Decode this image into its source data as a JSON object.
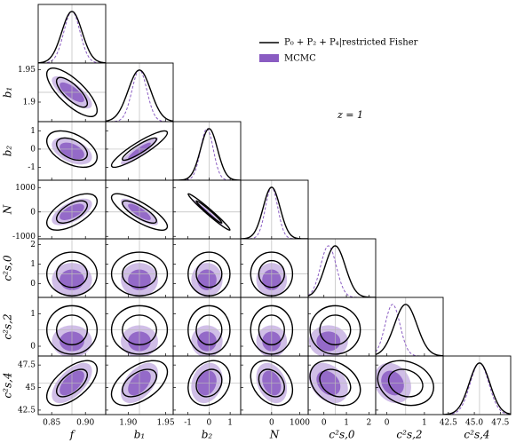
{
  "chart_data": {
    "type": "corner",
    "legend": [
      "P₀ + P₂ + P₄|restricted Fisher",
      "MCMC"
    ],
    "annotation": "z = 1",
    "fisher_color": "#000000",
    "mcmc_color": "#8a5cc2",
    "parameters": [
      {
        "label": "f",
        "fiducial": 0.88,
        "lim": [
          0.83,
          0.93
        ],
        "xticks": [
          0.85,
          {
            "value": 0.9,
            "label": "0.90"
          }
        ],
        "yticks": [],
        "fisher_sigma": 0.015,
        "mcmc_mean": 0.88,
        "mcmc_sigma": 0.012
      },
      {
        "label": "b₁",
        "fiducial": 1.915,
        "lim": [
          1.87,
          1.96
        ],
        "xticks": [
          {
            "value": 1.9,
            "label": "1.90"
          },
          1.95
        ],
        "yticks": [
          1.9,
          1.95
        ],
        "fisher_sigma": 0.015,
        "mcmc_mean": 1.915,
        "mcmc_sigma": 0.01
      },
      {
        "label": "b₂",
        "fiducial": 0,
        "lim": [
          -1.7,
          1.5
        ],
        "xticks": [
          -1,
          0,
          1
        ],
        "yticks": [
          -1,
          0,
          1
        ],
        "fisher_sigma": 0.4,
        "mcmc_mean": -0.1,
        "mcmc_sigma": 0.3
      },
      {
        "label": "N",
        "fiducial": 0,
        "lim": [
          -1100,
          1300
        ],
        "xticks": [
          0,
          1000
        ],
        "yticks": [
          -1000,
          0,
          1000
        ],
        "fisher_sigma": 300,
        "mcmc_mean": 0,
        "mcmc_sigma": 220
      },
      {
        "label": "c²s,0",
        "fiducial": 0.5,
        "lim": [
          -0.7,
          2.3
        ],
        "xticks": [
          0,
          1,
          2
        ],
        "yticks": [
          0,
          1,
          2
        ],
        "fisher_sigma": 0.45,
        "mcmc_mean": 0.2,
        "mcmc_sigma": 0.35
      },
      {
        "label": "c²s,2",
        "fiducial": 0.5,
        "lim": [
          -0.3,
          1.5
        ],
        "xticks": [
          0,
          1
        ],
        "yticks": [
          0,
          1
        ],
        "fisher_sigma": 0.3,
        "mcmc_mean": 0.15,
        "mcmc_sigma": 0.2
      },
      {
        "label": "c²s,4",
        "fiducial": 45.5,
        "lim": [
          42,
          48.5
        ],
        "xticks": [
          42.5,
          {
            "value": 45,
            "label": "45.0"
          },
          47.5
        ],
        "yticks": [
          42.5,
          45,
          47.5
        ],
        "fisher_sigma": 1.0,
        "mcmc_mean": 45.5,
        "mcmc_sigma": 0.9
      }
    ],
    "correlation": [
      [
        1,
        -0.75,
        -0.45,
        0.6,
        0,
        0,
        0.6
      ],
      [
        -0.75,
        1,
        0.9,
        -0.8,
        0,
        0,
        0.5
      ],
      [
        -0.45,
        0.9,
        1,
        -0.98,
        0,
        0,
        0.2
      ],
      [
        0.6,
        -0.8,
        -0.98,
        1,
        0,
        0,
        -0.3
      ],
      [
        0,
        0,
        0,
        0,
        1,
        0,
        -0.3
      ],
      [
        0,
        0,
        0,
        0,
        0,
        1,
        -0.2
      ],
      [
        0.6,
        0.5,
        0.2,
        -0.3,
        -0.3,
        -0.2,
        1
      ]
    ]
  }
}
